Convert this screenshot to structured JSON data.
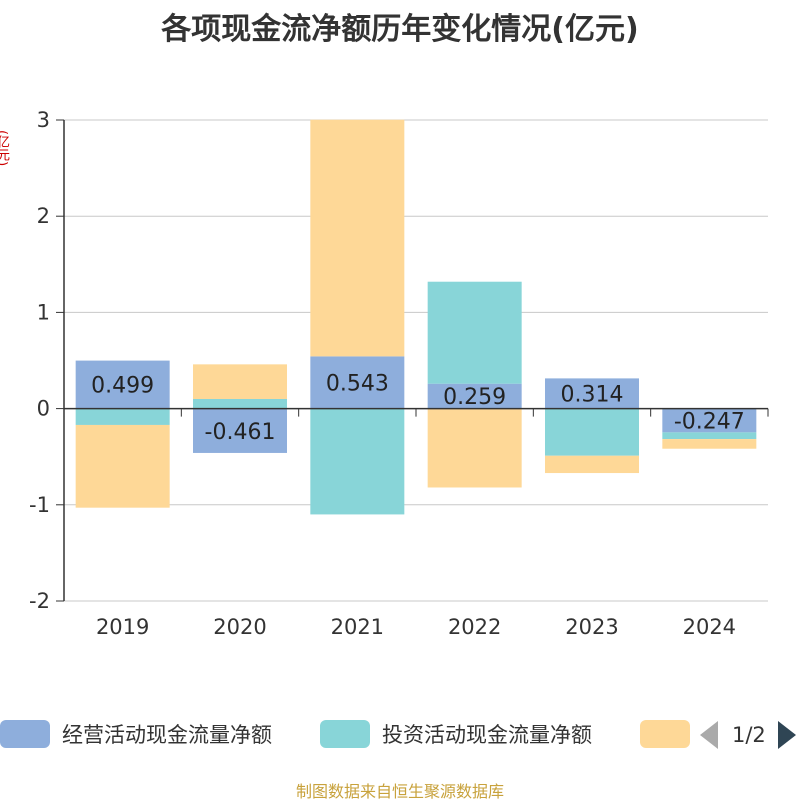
{
  "title": "各项现金流净额历年变化情况(亿元)",
  "unit_label": "(亿元)",
  "source": "制图数据来自恒生聚源数据库",
  "pager": {
    "text": "1/2"
  },
  "chart_data": {
    "type": "bar",
    "stacked": true,
    "categories": [
      "2019",
      "2020",
      "2021",
      "2022",
      "2023",
      "2024"
    ],
    "ylim": [
      -2,
      3
    ],
    "yticks": [
      "3",
      "2",
      "1",
      "0",
      "-1",
      "-2"
    ],
    "grid": true,
    "legend_position": "bottom",
    "series": [
      {
        "name": "经营活动现金流量净额",
        "color": "#8eaedc",
        "values": [
          0.499,
          -0.461,
          0.543,
          0.259,
          0.314,
          -0.247
        ],
        "labels": [
          "0.499",
          "-0.461",
          "0.543",
          "0.259",
          "0.314",
          "-0.247"
        ]
      },
      {
        "name": "投资活动现金流量净额",
        "color": "#88d5d8",
        "values": [
          -0.17,
          0.1,
          -1.1,
          1.06,
          -0.49,
          -0.07
        ]
      },
      {
        "name": "",
        "color": "#fed897",
        "values": [
          -0.86,
          0.36,
          2.46,
          -0.82,
          -0.18,
          -0.1
        ]
      }
    ]
  }
}
